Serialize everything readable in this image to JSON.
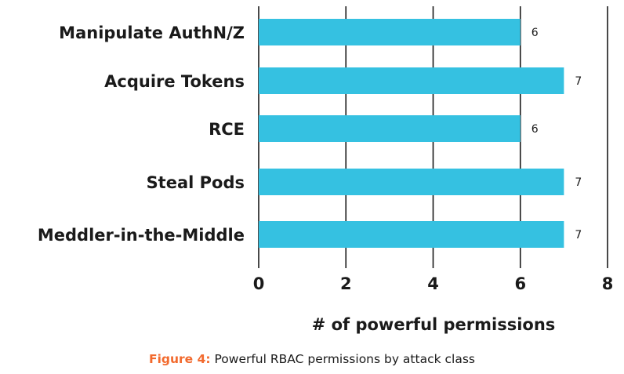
{
  "chart_data": {
    "type": "bar",
    "orientation": "horizontal",
    "categories": [
      "Manipulate AuthN/Z",
      "Acquire Tokens",
      "RCE",
      "Steal Pods",
      "Meddler-in-the-Middle"
    ],
    "values": [
      6,
      7,
      6,
      7,
      7
    ],
    "xlabel": "# of powerful permissions",
    "ylabel": "",
    "xlim": [
      0,
      8
    ],
    "xticks": [
      "0",
      "2",
      "4",
      "6",
      "8"
    ],
    "bar_color": "#35c1e1",
    "grid": true,
    "legend": "none"
  },
  "caption": {
    "prefix": "Figure 4:",
    "text": " Powerful RBAC permissions by attack class"
  }
}
